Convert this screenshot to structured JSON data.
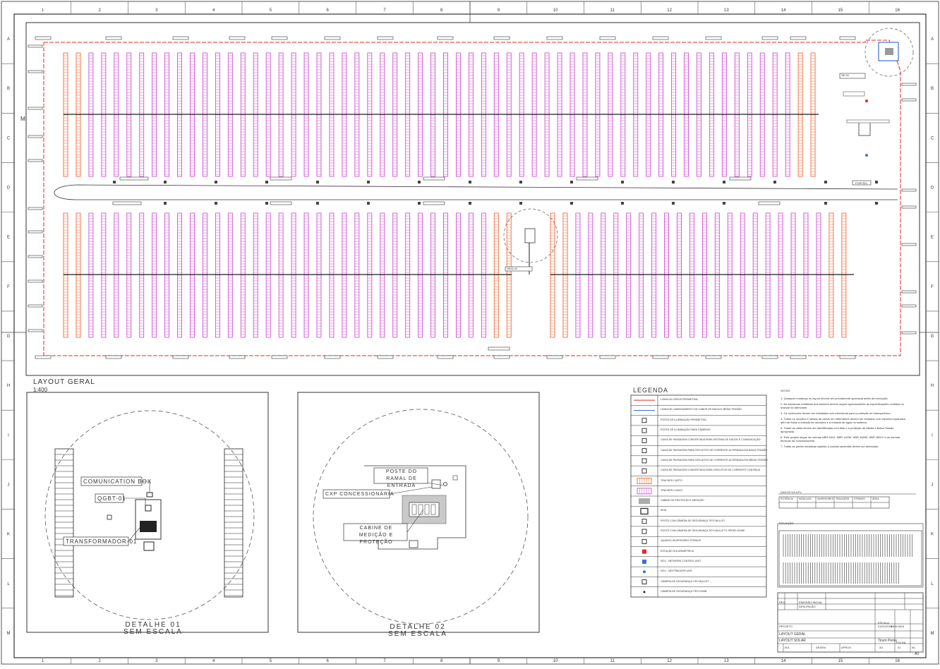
{
  "sheet": {
    "columns": [
      "1",
      "2",
      "3",
      "4",
      "5",
      "6",
      "7",
      "8",
      "9",
      "10",
      "11",
      "12",
      "13",
      "14",
      "15",
      "16"
    ],
    "rows": [
      "A",
      "B",
      "C",
      "D",
      "E",
      "F",
      "G",
      "H",
      "I",
      "J",
      "K",
      "L",
      "M"
    ],
    "side_mark": "MI",
    "corner_mark": "A0"
  },
  "layout": {
    "title": "LAYOUT GERAL",
    "scale": "1:400",
    "colors": {
      "fence": "#e0282c",
      "trench": "#1c1c1c",
      "string_row": "#d24fd6",
      "edge_row": "#f06b3a",
      "building": "#3a6fd8"
    },
    "tags": {
      "skid": "SKID-01",
      "substation": "SE-01",
      "gate": "PORTÃO"
    }
  },
  "detail1": {
    "title": "DETALHE 01",
    "subtitle": "SEM ESCALA",
    "callouts": [
      "COMUNICATION BOX",
      "QGBT-01",
      "TRANSFORMADOR-01"
    ]
  },
  "detail2": {
    "title": "DETALHE 02",
    "subtitle": "SEM ESCALA",
    "callouts": [
      "POSTE DO RAMAL DE ENTRADA",
      "CXP CONCESSIONÁRIA",
      "CABINE DE MEDIÇÃO E PROTEÇÃO"
    ]
  },
  "legend": {
    "title": "LEGENDA",
    "items": [
      "LINHA DA CERCA PERIMETRAL",
      "LINHA DE CAMINHAMENTO DE CABOS DE BAIXA E MÉDIA TENSÃO",
      "POSTE DE ILUMINAÇÃO PERIMETRAL",
      "POSTE DE ILUMINAÇÃO PARA CÂMERAS",
      "CAIXA DE PASSAGEM CONCRETADA PARA SISTEMA DE DADOS E COMUNICAÇÃO",
      "CAIXA DE PASSAGEM PARA CIRCUITOS DE CORRENTE ALTERNADA EM BAIXA TENSÃO",
      "CAIXA DE PASSAGEM PARA CIRCUITOS DE CORRENTE ALTERNADA EM MÉDIA TENSÃO",
      "CAIXA DE PASSAGEM CONCRETADA PARA CIRCUITOS DE CORRENTE CONTÍNUA",
      "TRACKER CURTO",
      "TRACKER LONGO",
      "CABINE DE PROTEÇÃO E MEDIÇÃO",
      "SKID",
      "POSTE COM CÂMERA DE SEGURANÇA TIPO BULLET",
      "POSTE COM CÂMERA DE SEGURANÇA TIPO BULLET E SPEED DOME",
      "QUADRO INVERSORES STRINGS",
      "ESTAÇÃO SOLARIMÉTRICA",
      "NCU - NETWORK CONTROL UNIT",
      "NCU - NEXTRACKER UNIT",
      "CÂMERA DE SEGURANÇA TIPO BULLET",
      "CÂMERA DE SEGURANÇA TIPO DOME"
    ]
  },
  "notes": {
    "title": "NOTAS",
    "items": [
      "1- Qualquer mudança no layout deverá ser previamente aprovada antes da execução.",
      "2- As estruturas metálicas dos trackers devem seguir rigorosamente as especificações contidas no manual do fabricante.",
      "3- Os inversores devem ser instalados sob coberturas para a proteção do intemperismo.",
      "4- Todos os circuitos e saídas de cabos em eletrodutos devem ser vedados com espuma expansiva, afim de evitar a entrada de roedores e a entrada de água no sistema.",
      "5- Todas as valas devem ser identificadas com fitas e a proteção de Média e Baixa Tensão apropriada.",
      "6- Este projeto segue as normas NBR 5410, NBR 14039, NBR 16690, NBR 16612 e as normas técnicas da concessionária.",
      "7- Todas as partes metálicas sujeitas a contato acidental devem ser aterradas."
    ]
  },
  "data_table": {
    "title": "DADOS DA UFV",
    "headers": [
      "POTÊNCIA",
      "MÓDULOS",
      "INVERSORES",
      "TRACKERS",
      "STRINGS",
      "ÁREA"
    ],
    "values": [
      "",
      "",
      "",
      "",
      "",
      ""
    ]
  },
  "location": {
    "title": "SITUAÇÃO"
  },
  "title_block": {
    "drawing_title": "LAYOUT GERAL",
    "date": "01/01/2024",
    "sheet_label": "FOLHA",
    "sheet_number": "01",
    "revision": "00",
    "format": "A0",
    "project_label": "PROJETO",
    "scale_label": "ESCALA",
    "scale_value": "INDICADA",
    "client": "Tirum Pemu",
    "rev_label": "REV.",
    "description_label": "DESCRIÇÃO",
    "emission": "EMISSÃO INICIAL",
    "approved": "APROV.",
    "drawn": "DESEN.",
    "document": "LAYOUT SOLAR",
    "code": "001"
  }
}
